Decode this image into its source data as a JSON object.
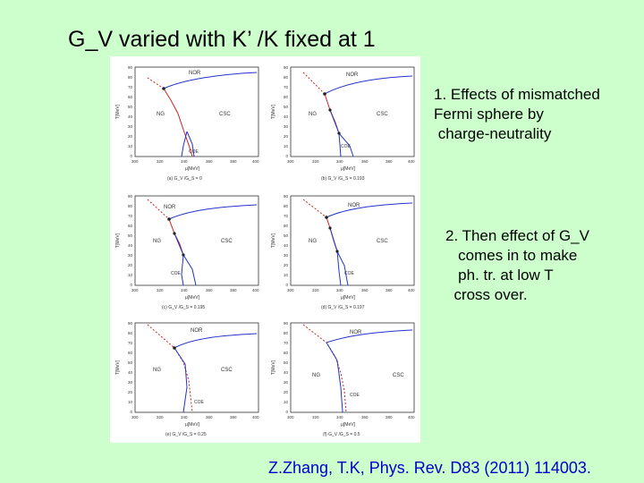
{
  "slide": {
    "title": "G_V varied with K’ /K fixed at 1",
    "note1": [
      "1. Effects of mismatched",
      "Fermi sphere by",
      " charge-neutrality"
    ],
    "note2": [
      "2. Then effect of G_V",
      "   comes in to make",
      "   ph. tr. at low T",
      "  cross over."
    ],
    "citation": "Z.Zhang, T.K, Phys. Rev. D83 (2011) 114003."
  },
  "figure": {
    "xlabel": "μ[MeV]",
    "ylabel": "T[MeV]",
    "xticks": [
      "300",
      "320",
      "340",
      "360",
      "380",
      "400"
    ],
    "yticks": [
      "0",
      "10",
      "20",
      "30",
      "40",
      "50",
      "60",
      "70",
      "80",
      "90"
    ],
    "region_labels": {
      "nor": "NOR",
      "ng": "NG",
      "csc": "CSC",
      "coe": "COE"
    },
    "panels": [
      {
        "caption": "(a) G_V /G_S = 0"
      },
      {
        "caption": "(b) G_V /G_S = 0.193"
      },
      {
        "caption": "(c) G_V /G_S = 0.195"
      },
      {
        "caption": "(d) G_V /G_S = 0.197"
      },
      {
        "caption": "(e) G_V /G_S = 0.25"
      },
      {
        "caption": "(f) G_V /G_S = 0.5"
      }
    ],
    "colors": {
      "chiral_line": "#cc2222",
      "csc_line": "#2233cc",
      "background": "#ccffcc",
      "citation": "#0000cc"
    }
  }
}
